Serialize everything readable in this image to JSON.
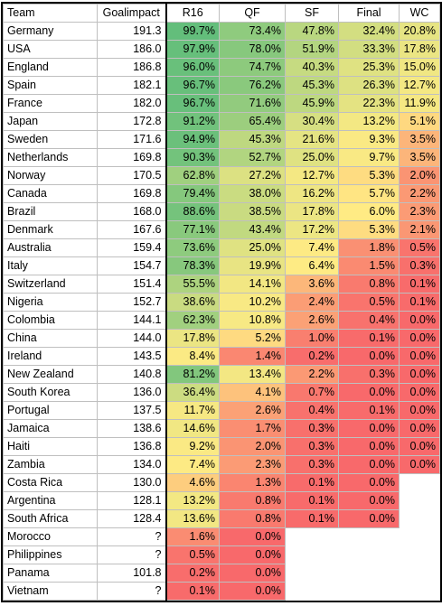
{
  "headers": [
    "Team",
    "Goalimpact",
    "R16",
    "QF",
    "SF",
    "Final",
    "WC"
  ],
  "rows": [
    [
      "Germany",
      "191.3",
      "99.7%",
      "73.4%",
      "47.8%",
      "32.4%",
      "20.8%"
    ],
    [
      "USA",
      "186.0",
      "97.9%",
      "78.0%",
      "51.9%",
      "33.3%",
      "17.8%"
    ],
    [
      "England",
      "186.8",
      "96.0%",
      "74.7%",
      "40.3%",
      "25.3%",
      "15.0%"
    ],
    [
      "Spain",
      "182.1",
      "96.7%",
      "76.2%",
      "45.3%",
      "26.3%",
      "12.7%"
    ],
    [
      "France",
      "182.0",
      "96.7%",
      "71.6%",
      "45.9%",
      "22.3%",
      "11.9%"
    ],
    [
      "Japan",
      "172.8",
      "91.2%",
      "65.4%",
      "30.4%",
      "13.2%",
      "5.1%"
    ],
    [
      "Sweden",
      "171.6",
      "94.9%",
      "45.3%",
      "21.6%",
      "9.3%",
      "3.5%"
    ],
    [
      "Netherlands",
      "169.8",
      "90.3%",
      "52.7%",
      "25.0%",
      "9.7%",
      "3.5%"
    ],
    [
      "Norway",
      "170.5",
      "62.8%",
      "27.2%",
      "12.7%",
      "5.3%",
      "2.0%"
    ],
    [
      "Canada",
      "169.8",
      "79.4%",
      "38.0%",
      "16.2%",
      "5.7%",
      "2.2%"
    ],
    [
      "Brazil",
      "168.0",
      "88.6%",
      "38.5%",
      "17.8%",
      "6.0%",
      "2.3%"
    ],
    [
      "Denmark",
      "167.6",
      "77.1%",
      "43.4%",
      "17.2%",
      "5.3%",
      "2.1%"
    ],
    [
      "Australia",
      "159.4",
      "73.6%",
      "25.0%",
      "7.4%",
      "1.8%",
      "0.5%"
    ],
    [
      "Italy",
      "154.7",
      "78.3%",
      "19.9%",
      "6.4%",
      "1.5%",
      "0.3%"
    ],
    [
      "Switzerland",
      "151.4",
      "55.5%",
      "14.1%",
      "3.6%",
      "0.8%",
      "0.1%"
    ],
    [
      "Nigeria",
      "152.7",
      "38.6%",
      "10.2%",
      "2.4%",
      "0.5%",
      "0.1%"
    ],
    [
      "Colombia",
      "144.1",
      "62.3%",
      "10.8%",
      "2.6%",
      "0.4%",
      "0.0%"
    ],
    [
      "China",
      "144.0",
      "17.8%",
      "5.2%",
      "1.0%",
      "0.1%",
      "0.0%"
    ],
    [
      "Ireland",
      "143.5",
      "8.4%",
      "1.4%",
      "0.2%",
      "0.0%",
      "0.0%"
    ],
    [
      "New Zealand",
      "140.8",
      "81.2%",
      "13.4%",
      "2.2%",
      "0.3%",
      "0.0%"
    ],
    [
      "South Korea",
      "136.0",
      "36.4%",
      "4.1%",
      "0.7%",
      "0.0%",
      "0.0%"
    ],
    [
      "Portugal",
      "137.5",
      "11.7%",
      "2.6%",
      "0.4%",
      "0.1%",
      "0.0%"
    ],
    [
      "Jamaica",
      "138.6",
      "14.6%",
      "1.7%",
      "0.3%",
      "0.0%",
      "0.0%"
    ],
    [
      "Haiti",
      "136.8",
      "9.2%",
      "2.0%",
      "0.3%",
      "0.0%",
      "0.0%"
    ],
    [
      "Zambia",
      "134.0",
      "7.4%",
      "2.3%",
      "0.3%",
      "0.0%",
      "0.0%"
    ],
    [
      "Costa Rica",
      "130.0",
      "4.6%",
      "1.3%",
      "0.1%",
      "0.0%",
      ""
    ],
    [
      "Argentina",
      "128.1",
      "13.2%",
      "0.8%",
      "0.1%",
      "0.0%",
      ""
    ],
    [
      "South Africa",
      "128.4",
      "13.6%",
      "0.8%",
      "0.1%",
      "0.0%",
      ""
    ],
    [
      "Morocco",
      "?",
      "1.6%",
      "0.0%",
      "",
      "",
      ""
    ],
    [
      "Philippines",
      "?",
      "0.5%",
      "0.0%",
      "",
      "",
      ""
    ],
    [
      "Panama",
      "101.8",
      "0.2%",
      "0.0%",
      "",
      "",
      ""
    ],
    [
      "Vietnam",
      "?",
      "0.1%",
      "0.0%",
      "",
      "",
      ""
    ]
  ],
  "colors": {
    "high": "#63be7b",
    "mid": "#ffeb84",
    "low": "#f8696b"
  }
}
